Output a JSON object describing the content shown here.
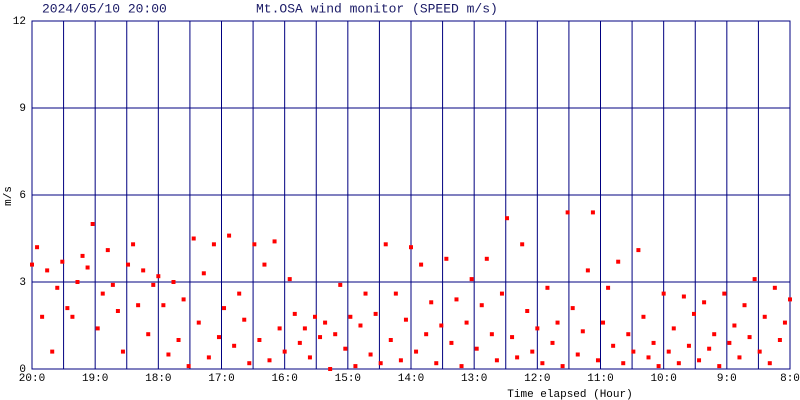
{
  "chart_data": {
    "type": "scatter",
    "timestamp": "2024/05/10 20:00",
    "title": "Mt.OSA wind monitor (SPEED m/s)",
    "y_label": "m/s",
    "x_label": "Time elapsed (Hour)",
    "color": "#ff0000",
    "grid_color": "#000080",
    "grid": true,
    "xlim": [
      0,
      12
    ],
    "ylim": [
      0,
      12
    ],
    "xticks": [
      {
        "value": 0,
        "label": "20:0"
      },
      {
        "value": 1,
        "label": "19:0"
      },
      {
        "value": 2,
        "label": "18:0"
      },
      {
        "value": 3,
        "label": "17:0"
      },
      {
        "value": 4,
        "label": "16:0"
      },
      {
        "value": 5,
        "label": "15:0"
      },
      {
        "value": 6,
        "label": "14:0"
      },
      {
        "value": 7,
        "label": "13:0"
      },
      {
        "value": 8,
        "label": "12:0"
      },
      {
        "value": 9,
        "label": "11:0"
      },
      {
        "value": 10,
        "label": "10:0"
      },
      {
        "value": 11,
        "label": "9:0"
      },
      {
        "value": 12,
        "label": "8:0"
      }
    ],
    "xminor": [
      0.5,
      1.5,
      2.5,
      3.5,
      4.5,
      5.5,
      6.5,
      7.5,
      8.5,
      9.5,
      10.5,
      11.5
    ],
    "yticks": [
      0,
      3,
      6,
      9,
      12
    ],
    "x": [
      0,
      0.08,
      0.16,
      0.24,
      0.32,
      0.4,
      0.48,
      0.56,
      0.64,
      0.72,
      0.8,
      0.88,
      0.96,
      1.04,
      1.12,
      1.2,
      1.28,
      1.36,
      1.44,
      1.52,
      1.6,
      1.68,
      1.76,
      1.84,
      1.92,
      2,
      2.08,
      2.16,
      2.24,
      2.32,
      2.4,
      2.48,
      2.56,
      2.64,
      2.72,
      2.8,
      2.88,
      2.96,
      3.04,
      3.12,
      3.2,
      3.28,
      3.36,
      3.44,
      3.52,
      3.6,
      3.68,
      3.76,
      3.84,
      3.92,
      4,
      4.08,
      4.16,
      4.24,
      4.32,
      4.4,
      4.48,
      4.56,
      4.64,
      4.72,
      4.8,
      4.88,
      4.96,
      5.04,
      5.12,
      5.2,
      5.28,
      5.36,
      5.44,
      5.52,
      5.6,
      5.68,
      5.76,
      5.84,
      5.92,
      6,
      6.08,
      6.16,
      6.24,
      6.32,
      6.4,
      6.48,
      6.56,
      6.64,
      6.72,
      6.8,
      6.88,
      6.96,
      7.04,
      7.12,
      7.2,
      7.28,
      7.36,
      7.44,
      7.52,
      7.6,
      7.68,
      7.76,
      7.84,
      7.92,
      8,
      8.08,
      8.16,
      8.24,
      8.32,
      8.4,
      8.48,
      8.56,
      8.64,
      8.72,
      8.8,
      8.88,
      8.96,
      9.04,
      9.12,
      9.2,
      9.28,
      9.36,
      9.44,
      9.52,
      9.6,
      9.68,
      9.76,
      9.84,
      9.92,
      10,
      10.08,
      10.16,
      10.24,
      10.32,
      10.4,
      10.48,
      10.56,
      10.64,
      10.72,
      10.8,
      10.88,
      10.96,
      11.04,
      11.12,
      11.2,
      11.28,
      11.36,
      11.44,
      11.52,
      11.6,
      11.68,
      11.76,
      11.84,
      11.92,
      12
    ],
    "values": [
      3.6,
      4.2,
      1.8,
      3.4,
      0.6,
      2.8,
      3.7,
      2.1,
      1.8,
      3.0,
      3.9,
      3.5,
      5.0,
      1.4,
      2.6,
      4.1,
      2.9,
      2.0,
      0.6,
      3.6,
      4.3,
      2.2,
      3.4,
      1.2,
      2.9,
      3.2,
      2.2,
      0.5,
      3.0,
      1.0,
      2.4,
      0.1,
      4.5,
      1.6,
      3.3,
      0.4,
      4.3,
      1.1,
      2.1,
      4.6,
      0.8,
      2.6,
      1.7,
      0.2,
      4.3,
      1.0,
      3.6,
      0.3,
      4.4,
      1.4,
      0.6,
      3.1,
      1.9,
      0.9,
      1.4,
      0.4,
      1.8,
      1.1,
      1.6,
      0.0,
      1.2,
      2.9,
      0.7,
      1.8,
      0.1,
      1.5,
      2.6,
      0.5,
      1.9,
      0.2,
      4.3,
      1.0,
      2.6,
      0.3,
      1.7,
      4.2,
      0.6,
      3.6,
      1.2,
      2.3,
      0.2,
      1.5,
      3.8,
      0.9,
      2.4,
      0.1,
      1.6,
      3.1,
      0.7,
      2.2,
      3.8,
      1.2,
      0.3,
      2.6,
      5.2,
      1.1,
      0.4,
      4.3,
      2.0,
      0.6,
      1.4,
      0.2,
      2.8,
      0.9,
      1.6,
      0.1,
      5.4,
      2.1,
      0.5,
      1.3,
      3.4,
      5.4,
      0.3,
      1.6,
      2.8,
      0.8,
      3.7,
      0.2,
      1.2,
      0.6,
      4.1,
      1.8,
      0.4,
      0.9,
      0.1,
      2.6,
      0.6,
      1.4,
      0.2,
      2.5,
      0.8,
      1.9,
      0.3,
      2.3,
      0.7,
      1.2,
      0.1,
      2.6,
      0.9,
      1.5,
      0.4,
      2.2,
      1.1,
      3.1,
      0.6,
      1.8,
      0.2,
      2.8,
      1.0,
      1.6,
      2.4
    ]
  }
}
